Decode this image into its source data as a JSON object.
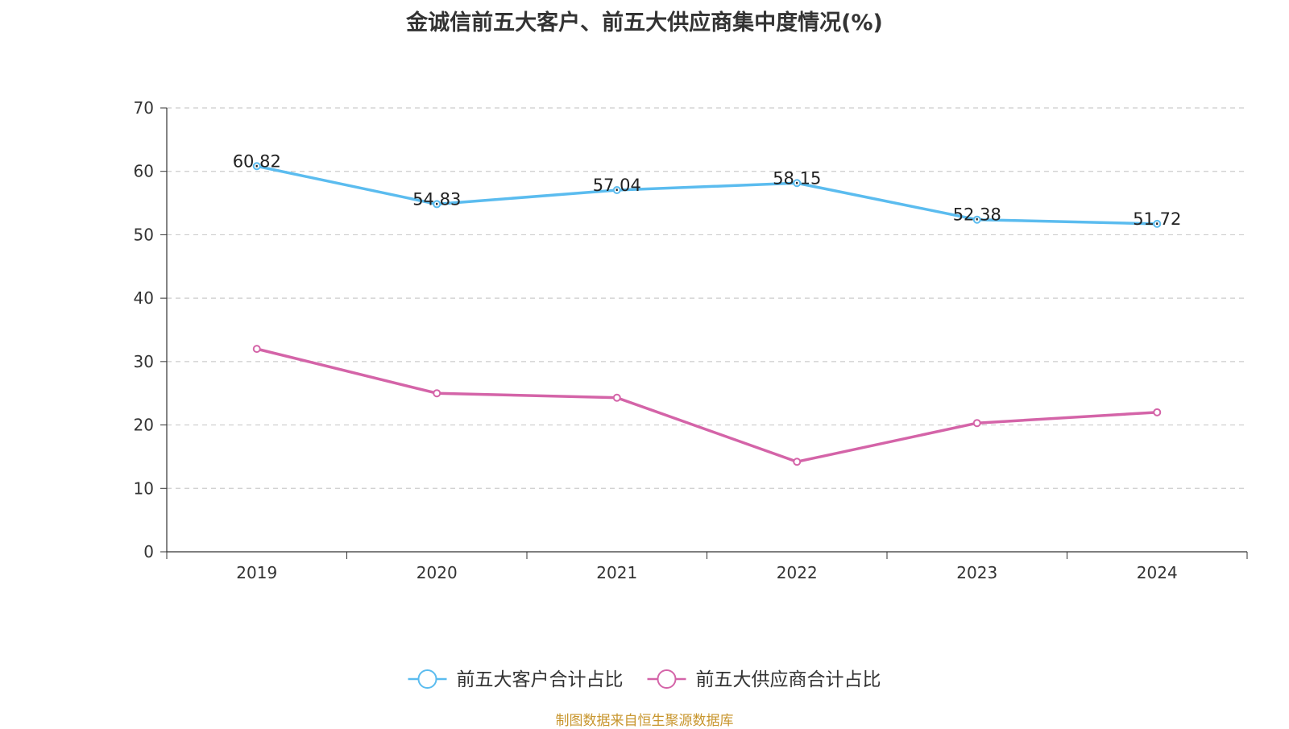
{
  "chart_data": {
    "type": "line",
    "title": "金诚信前五大客户、前五大供应商集中度情况(%)",
    "categories": [
      "2019",
      "2020",
      "2021",
      "2022",
      "2023",
      "2024"
    ],
    "ylim": [
      0,
      70
    ],
    "yticks": [
      0,
      10,
      20,
      30,
      40,
      50,
      60,
      70
    ],
    "grid": true,
    "legend_position": "bottom-center",
    "series": [
      {
        "name": "前五大客户合计占比",
        "color": "#5bbcef",
        "values": [
          60.82,
          54.83,
          57.04,
          58.15,
          52.38,
          51.72
        ],
        "show_labels": true,
        "labels": [
          "60.82",
          "54.83",
          "57.04",
          "58.15",
          "52.38",
          "51.72"
        ]
      },
      {
        "name": "前五大供应商合计占比",
        "color": "#d464a8",
        "values": [
          32.0,
          25.0,
          24.3,
          14.2,
          20.3,
          22.0
        ],
        "show_labels": false
      }
    ],
    "source": "制图数据来自恒生聚源数据库"
  }
}
